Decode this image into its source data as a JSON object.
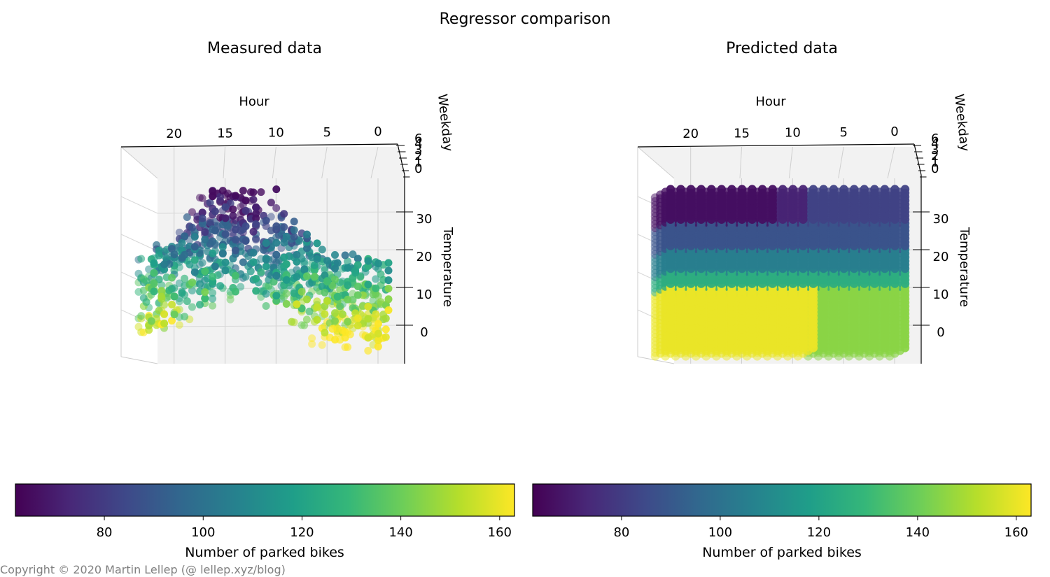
{
  "figure": {
    "suptitle": "Regressor comparison",
    "copyright": "Copyright © 2020 Martin Lellep (@ lellep.xyz/blog)"
  },
  "colormap": {
    "name": "viridis",
    "stops": [
      "#440154",
      "#482878",
      "#3e4989",
      "#31688e",
      "#26828e",
      "#1f9e89",
      "#35b779",
      "#6ece58",
      "#b5de2b",
      "#fde725"
    ]
  },
  "chart_data": [
    {
      "type": "scatter",
      "projection": "3d",
      "title": "Measured data",
      "axes": {
        "x": {
          "label": "Hour",
          "range": [
            0,
            23
          ],
          "ticks": [
            20,
            15,
            10,
            5,
            0
          ]
        },
        "y": {
          "label": "Weekday",
          "range": [
            0,
            6
          ],
          "ticks": [
            6,
            4,
            3,
            2,
            1,
            0
          ]
        },
        "z": {
          "label": "Temperature",
          "range": [
            -10,
            38
          ],
          "ticks": [
            30,
            20,
            10,
            0
          ]
        }
      },
      "color": {
        "label": "Number of parked bikes",
        "range": [
          62,
          163
        ],
        "ticks": [
          80,
          100,
          120,
          140,
          160
        ]
      },
      "trend": "Bike counts are lowest (~70–90) at warm temperatures (25–35) during daytime hours 8–20 and highest (~150–163) at low temperatures (0–10), particularly at night hours 0–6."
    },
    {
      "type": "scatter",
      "projection": "3d",
      "title": "Predicted data",
      "axes": {
        "x": {
          "label": "Hour",
          "range": [
            0,
            23
          ],
          "ticks": [
            20,
            15,
            10,
            5,
            0
          ]
        },
        "y": {
          "label": "Weekday",
          "range": [
            0,
            6
          ],
          "ticks": [
            6,
            4,
            3,
            2,
            1,
            0
          ]
        },
        "z": {
          "label": "Temperature",
          "range": [
            -10,
            38
          ],
          "ticks": [
            30,
            20,
            10,
            0
          ]
        }
      },
      "color": {
        "label": "Number of parked bikes",
        "range": [
          62,
          163
        ],
        "ticks": [
          80,
          100,
          120,
          140,
          160
        ]
      },
      "regions": [
        {
          "hours": [
            13,
            23
          ],
          "temp": [
            28,
            38
          ],
          "value": 66
        },
        {
          "hours": [
            10,
            12
          ],
          "temp": [
            28,
            38
          ],
          "value": 72
        },
        {
          "hours": [
            0,
            9
          ],
          "temp": [
            28,
            38
          ],
          "value": 82
        },
        {
          "hours": [
            0,
            23
          ],
          "temp": [
            21,
            27
          ],
          "value": 88
        },
        {
          "hours": [
            0,
            23
          ],
          "temp": [
            15,
            20
          ],
          "value": 105
        },
        {
          "hours": [
            0,
            23
          ],
          "temp": [
            11,
            14
          ],
          "value": 125
        },
        {
          "hours": [
            9,
            23
          ],
          "temp": [
            -10,
            10
          ],
          "value": 160
        },
        {
          "hours": [
            0,
            8
          ],
          "temp": [
            -10,
            10
          ],
          "value": 145
        }
      ]
    }
  ]
}
